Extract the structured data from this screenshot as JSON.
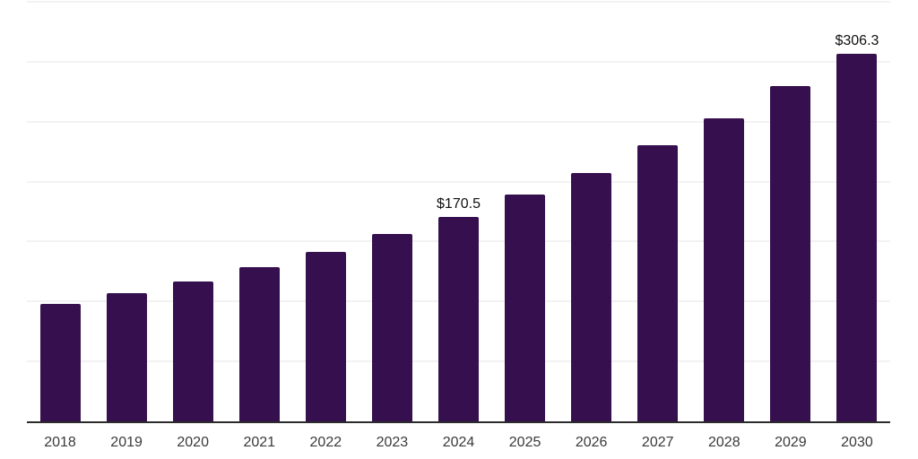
{
  "chart_data": {
    "type": "bar",
    "title": "",
    "xlabel": "",
    "ylabel": "",
    "categories": [
      "2018",
      "2019",
      "2020",
      "2021",
      "2022",
      "2023",
      "2024",
      "2025",
      "2026",
      "2027",
      "2028",
      "2029",
      "2030"
    ],
    "values": [
      98,
      107,
      117,
      129,
      141,
      156,
      170.5,
      189,
      207,
      230,
      253,
      280,
      306.3
    ],
    "data_labels": {
      "2024": "$170.5",
      "2030": "$306.3"
    },
    "ylim": [
      0,
      350
    ],
    "grid": true,
    "grid_step": 50,
    "legend": false,
    "colors": {
      "bar": "#36104e",
      "axis": "#2b2b2b",
      "grid": "#f2f2f2",
      "tick_label": "#3a3a3a",
      "value_label": "#101010",
      "background": "#ffffff"
    }
  }
}
